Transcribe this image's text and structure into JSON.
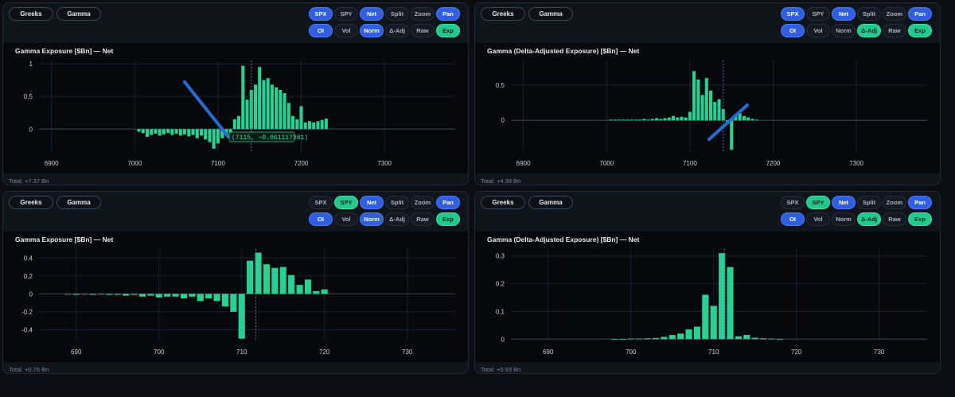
{
  "panels": [
    {
      "tabs": [
        "Greeks",
        "Gamma"
      ],
      "row1": [
        {
          "label": "SPX",
          "style": "blue"
        },
        {
          "label": "SPY",
          "style": "plain"
        },
        {
          "label": "Net",
          "style": "blue"
        },
        {
          "label": "Split",
          "style": "plain"
        },
        {
          "label": "Zoom",
          "style": "plain"
        },
        {
          "label": "Pan",
          "style": "blue"
        }
      ],
      "row2": [
        {
          "label": "OI",
          "style": "blue"
        },
        {
          "label": "Vol",
          "style": "plain"
        },
        {
          "label": "Norm",
          "style": "blue"
        },
        {
          "label": "Δ-Adj",
          "style": "plain"
        },
        {
          "label": "Raw",
          "style": "plain"
        },
        {
          "label": "Exp",
          "style": "green"
        }
      ],
      "title": "Gamma Exposure [$Bn] — Net",
      "total": "Total: +7.37 Bn",
      "tooltip": "(7115, −0.061117381)",
      "chart_data": {
        "type": "bar",
        "x_ticks": [
          6900,
          7000,
          7100,
          7200,
          7300
        ],
        "y_ticks": [
          0,
          0.5,
          1
        ],
        "xlim": [
          6885,
          7385
        ],
        "ylim": [
          -0.35,
          1.05
        ],
        "spot": 7140,
        "x": [
          7005,
          7010,
          7015,
          7020,
          7025,
          7030,
          7035,
          7040,
          7045,
          7050,
          7055,
          7060,
          7065,
          7070,
          7075,
          7080,
          7085,
          7090,
          7095,
          7100,
          7105,
          7110,
          7115,
          7120,
          7125,
          7130,
          7135,
          7140,
          7145,
          7150,
          7155,
          7160,
          7165,
          7170,
          7175,
          7180,
          7185,
          7190,
          7195,
          7200,
          7205,
          7210,
          7215,
          7220,
          7225,
          7230
        ],
        "values": [
          -0.04,
          -0.06,
          -0.12,
          -0.09,
          -0.07,
          -0.1,
          -0.08,
          -0.06,
          -0.09,
          -0.07,
          -0.1,
          -0.08,
          -0.11,
          -0.09,
          -0.14,
          -0.1,
          -0.16,
          -0.2,
          -0.3,
          -0.22,
          -0.14,
          -0.1,
          -0.06,
          0.15,
          0.2,
          0.97,
          0.45,
          0.6,
          0.68,
          0.95,
          0.75,
          0.78,
          0.68,
          0.64,
          0.6,
          0.55,
          0.4,
          0.2,
          0.15,
          0.35,
          0.1,
          0.12,
          0.1,
          0.12,
          0.14,
          0.16
        ]
      }
    },
    {
      "tabs": [
        "Greeks",
        "Gamma"
      ],
      "row1": [
        {
          "label": "SPX",
          "style": "blue"
        },
        {
          "label": "SPY",
          "style": "plain"
        },
        {
          "label": "Net",
          "style": "blue"
        },
        {
          "label": "Split",
          "style": "plain"
        },
        {
          "label": "Zoom",
          "style": "plain"
        },
        {
          "label": "Pan",
          "style": "blue"
        }
      ],
      "row2": [
        {
          "label": "OI",
          "style": "blue"
        },
        {
          "label": "Vol",
          "style": "plain"
        },
        {
          "label": "Norm",
          "style": "plain"
        },
        {
          "label": "Δ-Adj",
          "style": "green"
        },
        {
          "label": "Raw",
          "style": "plain"
        },
        {
          "label": "Exp",
          "style": "green"
        }
      ],
      "title": "Gamma (Delta-Adjusted Exposure) [$Bn] — Net",
      "total": "Total: +4.38 Bn",
      "chart_data": {
        "type": "bar",
        "x_ticks": [
          6900,
          7000,
          7100,
          7200,
          7300
        ],
        "y_ticks": [
          0,
          0.5
        ],
        "xlim": [
          6885,
          7385
        ],
        "ylim": [
          -0.45,
          0.85
        ],
        "spot": 7140,
        "x": [
          7005,
          7010,
          7015,
          7020,
          7025,
          7030,
          7035,
          7040,
          7045,
          7050,
          7055,
          7060,
          7065,
          7070,
          7075,
          7080,
          7085,
          7090,
          7095,
          7100,
          7105,
          7110,
          7115,
          7120,
          7125,
          7130,
          7135,
          7140,
          7145,
          7150,
          7155,
          7160,
          7165,
          7170,
          7175,
          7180
        ],
        "values": [
          0.01,
          0.01,
          0.01,
          0.01,
          0.01,
          0.01,
          0.01,
          0.01,
          0.02,
          0.01,
          0.02,
          0.03,
          0.02,
          0.03,
          0.04,
          0.06,
          0.04,
          0.05,
          0.04,
          0.12,
          0.7,
          0.58,
          0.36,
          0.6,
          0.42,
          0.26,
          0.3,
          0.16,
          -0.05,
          -0.42,
          0.06,
          0.1,
          0.06,
          0.04,
          0.02,
          0.01
        ]
      }
    },
    {
      "tabs": [
        "Greeks",
        "Gamma"
      ],
      "row1": [
        {
          "label": "SPX",
          "style": "plain"
        },
        {
          "label": "SPY",
          "style": "green"
        },
        {
          "label": "Net",
          "style": "blue"
        },
        {
          "label": "Split",
          "style": "plain"
        },
        {
          "label": "Zoom",
          "style": "plain"
        },
        {
          "label": "Pan",
          "style": "blue"
        }
      ],
      "row2": [
        {
          "label": "OI",
          "style": "blue"
        },
        {
          "label": "Vol",
          "style": "plain"
        },
        {
          "label": "Norm",
          "style": "blue"
        },
        {
          "label": "Δ-Adj",
          "style": "plain"
        },
        {
          "label": "Raw",
          "style": "plain"
        },
        {
          "label": "Exp",
          "style": "green"
        }
      ],
      "title": "Gamma Exposure [$Bn] — Net",
      "total": "Total: +0.76 Bn",
      "chart_data": {
        "type": "bar",
        "x_ticks": [
          690,
          700,
          710,
          720,
          730
        ],
        "y_ticks": [
          -0.4,
          -0.2,
          0,
          0.2,
          0.4
        ],
        "xlim": [
          685.5,
          735.8
        ],
        "ylim": [
          -0.52,
          0.5
        ],
        "spot": 711.7,
        "x": [
          689,
          690,
          691,
          692,
          693,
          694,
          695,
          696,
          697,
          698,
          699,
          700,
          701,
          702,
          703,
          704,
          705,
          706,
          707,
          708,
          709,
          710,
          711,
          712,
          713,
          714,
          715,
          716,
          717,
          718,
          719,
          720
        ],
        "values": [
          -0.005,
          -0.01,
          -0.005,
          -0.01,
          -0.005,
          -0.01,
          -0.01,
          -0.02,
          -0.01,
          -0.03,
          -0.02,
          -0.04,
          -0.03,
          -0.03,
          -0.05,
          -0.03,
          -0.08,
          -0.05,
          -0.08,
          -0.14,
          -0.2,
          -0.5,
          0.37,
          0.46,
          0.33,
          0.29,
          0.3,
          0.21,
          0.1,
          0.16,
          0.03,
          0.05
        ]
      }
    },
    {
      "tabs": [
        "Greeks",
        "Gamma"
      ],
      "row1": [
        {
          "label": "SPX",
          "style": "plain"
        },
        {
          "label": "SPY",
          "style": "green"
        },
        {
          "label": "Net",
          "style": "blue"
        },
        {
          "label": "Split",
          "style": "plain"
        },
        {
          "label": "Zoom",
          "style": "plain"
        },
        {
          "label": "Pan",
          "style": "blue"
        }
      ],
      "row2": [
        {
          "label": "OI",
          "style": "blue"
        },
        {
          "label": "Vol",
          "style": "plain"
        },
        {
          "label": "Norm",
          "style": "plain"
        },
        {
          "label": "Δ-Adj",
          "style": "green"
        },
        {
          "label": "Raw",
          "style": "plain"
        },
        {
          "label": "Exp",
          "style": "green"
        }
      ],
      "title": "Gamma (Delta-Adjusted Exposure) [$Bn] — Net",
      "total": "Total: +0.93 Bn",
      "chart_data": {
        "type": "bar",
        "x_ticks": [
          690,
          700,
          710,
          720,
          730
        ],
        "y_ticks": [
          0,
          0.1,
          0.2,
          0.3
        ],
        "xlim": [
          685.5,
          735.8
        ],
        "ylim": [
          -0.005,
          0.325
        ],
        "spot": 711.3,
        "x": [
          698,
          699,
          700,
          701,
          702,
          703,
          704,
          705,
          706,
          707,
          708,
          709,
          710,
          711,
          712,
          713,
          714,
          715,
          716,
          717,
          718
        ],
        "values": [
          0.001,
          0.001,
          0.002,
          0.002,
          0.003,
          0.004,
          0.008,
          0.015,
          0.02,
          0.035,
          0.045,
          0.16,
          0.12,
          0.31,
          0.26,
          0.01,
          0.015,
          0.005,
          0.003,
          0.002,
          0.001
        ]
      }
    }
  ],
  "colors": {
    "bar": "#23d394",
    "annotation": "#1f6fd6",
    "spot_line": "#4a6fa8",
    "grid": "#1c222c"
  }
}
